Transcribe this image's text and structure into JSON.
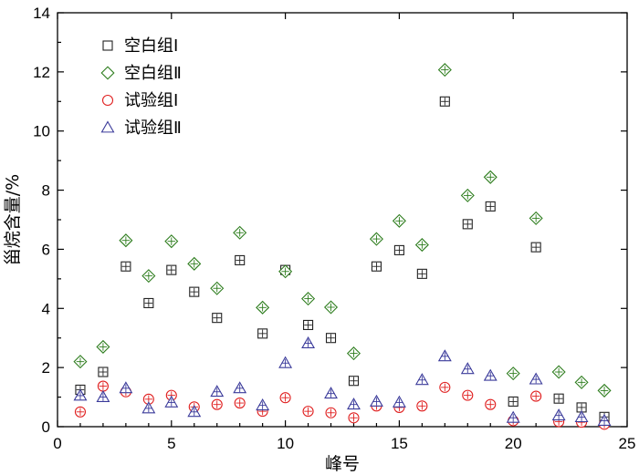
{
  "chart_data": {
    "type": "scatter",
    "xlabel": "峰号",
    "ylabel": "甾烷含量/%",
    "xlim": [
      0,
      25
    ],
    "ylim": [
      0,
      14
    ],
    "xticks": [
      0,
      5,
      10,
      15,
      20,
      25
    ],
    "yticks": [
      0,
      2,
      4,
      6,
      8,
      10,
      12,
      14
    ],
    "legend_position": "top-left",
    "grid": false,
    "series": [
      {
        "name": "空白组Ⅰ",
        "marker": "square",
        "color": "#222222",
        "x": [
          1,
          2,
          3,
          4,
          5,
          6,
          7,
          8,
          9,
          10,
          11,
          12,
          13,
          14,
          15,
          16,
          17,
          18,
          19,
          20,
          21,
          22,
          23,
          24
        ],
        "y": [
          1.25,
          1.85,
          5.42,
          4.18,
          5.3,
          4.56,
          3.68,
          5.63,
          3.15,
          5.3,
          3.44,
          3.0,
          1.55,
          5.42,
          5.97,
          5.17,
          11.0,
          6.85,
          7.45,
          0.85,
          6.07,
          0.95,
          0.65,
          0.33
        ]
      },
      {
        "name": "空白组Ⅱ",
        "marker": "diamond",
        "color": "#2e7d1e",
        "x": [
          1,
          2,
          3,
          4,
          5,
          6,
          7,
          8,
          9,
          10,
          11,
          12,
          13,
          14,
          15,
          16,
          17,
          18,
          19,
          20,
          21,
          22,
          23,
          24
        ],
        "y": [
          2.2,
          2.7,
          6.3,
          5.1,
          6.27,
          5.51,
          4.68,
          6.56,
          4.03,
          5.25,
          4.33,
          4.04,
          2.48,
          6.35,
          6.96,
          6.15,
          12.07,
          7.82,
          8.44,
          1.8,
          7.05,
          1.85,
          1.5,
          1.22
        ]
      },
      {
        "name": "试验组Ⅰ",
        "marker": "circle",
        "color": "#e02020",
        "x": [
          1,
          2,
          3,
          4,
          5,
          6,
          7,
          8,
          9,
          10,
          11,
          12,
          13,
          14,
          15,
          16,
          17,
          18,
          19,
          20,
          21,
          22,
          23,
          24
        ],
        "y": [
          0.5,
          1.37,
          1.18,
          0.93,
          1.06,
          0.67,
          0.75,
          0.8,
          0.52,
          0.98,
          0.52,
          0.47,
          0.3,
          0.7,
          0.65,
          0.7,
          1.33,
          1.06,
          0.75,
          0.2,
          1.03,
          0.17,
          0.15,
          0.08
        ]
      },
      {
        "name": "试验组Ⅱ",
        "marker": "triangle",
        "color": "#3a3a9a",
        "x": [
          1,
          2,
          3,
          4,
          5,
          6,
          7,
          8,
          9,
          10,
          11,
          12,
          13,
          14,
          15,
          16,
          17,
          18,
          19,
          20,
          21,
          22,
          23,
          24
        ],
        "y": [
          1.05,
          1.0,
          1.3,
          0.62,
          0.82,
          0.5,
          1.18,
          1.3,
          0.72,
          2.15,
          2.82,
          1.12,
          0.75,
          0.85,
          0.82,
          1.58,
          2.38,
          1.95,
          1.72,
          0.3,
          1.6,
          0.38,
          0.32,
          0.2
        ]
      }
    ]
  }
}
